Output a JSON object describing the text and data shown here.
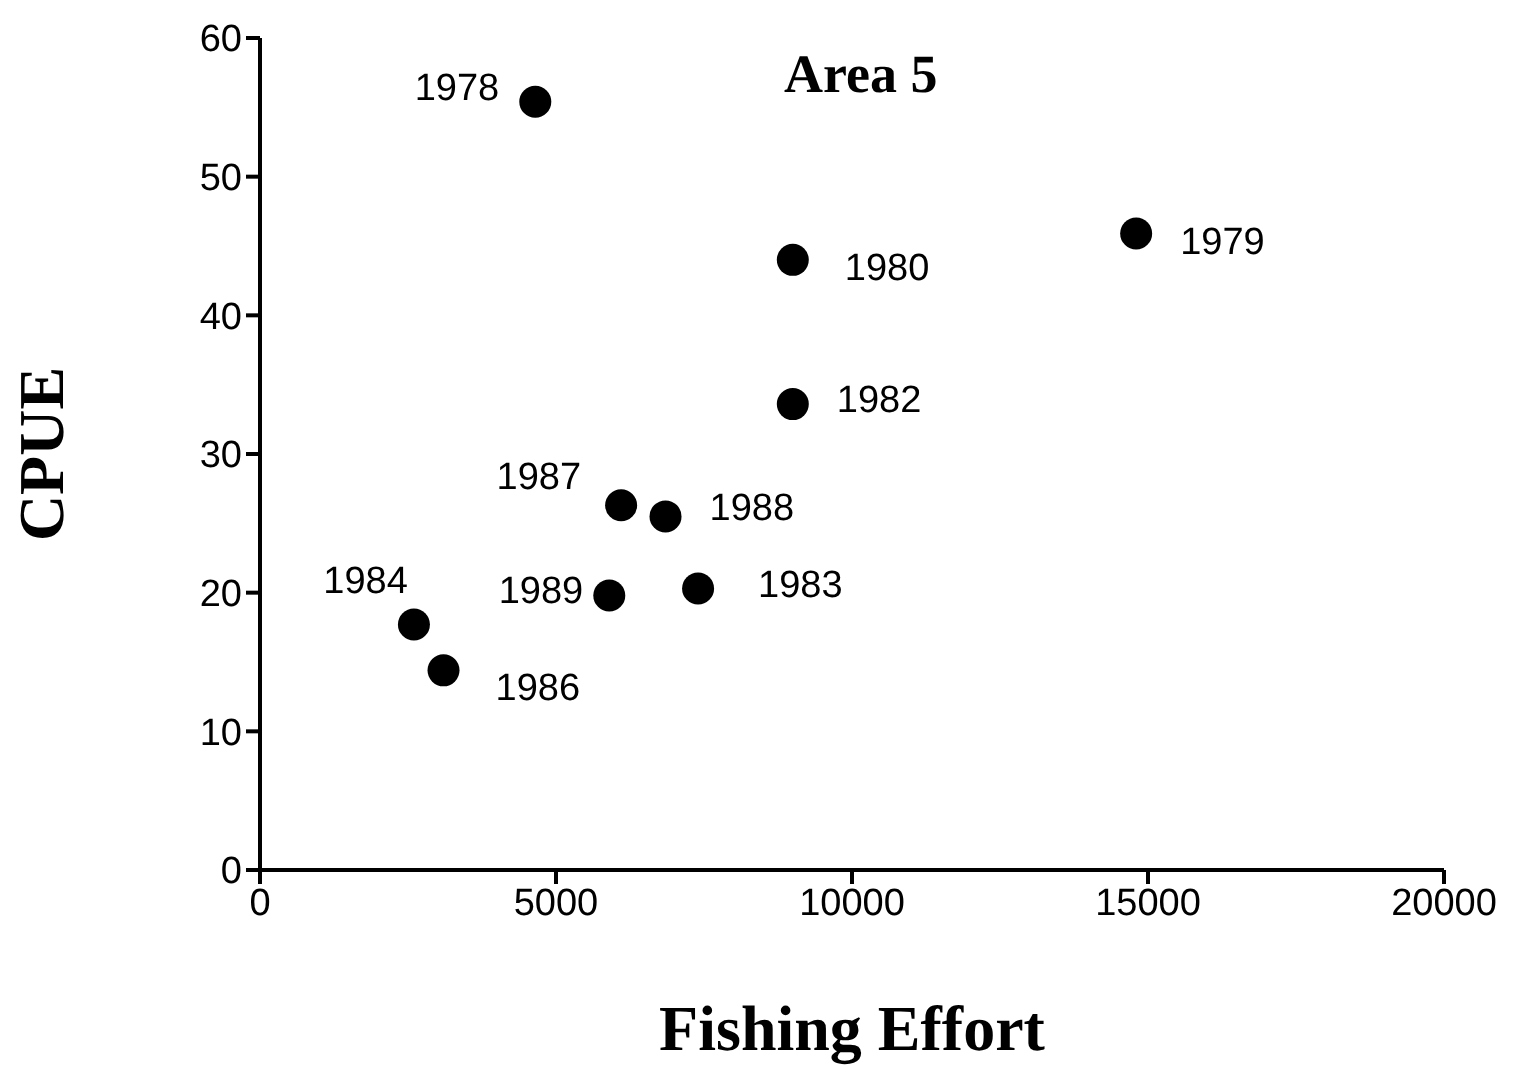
{
  "chart_data": {
    "type": "scatter",
    "title": "Area 5",
    "xlabel": "Fishing  Effort",
    "ylabel": "CPUE",
    "x": [
      4650,
      14800,
      9000,
      9000,
      7400,
      2600,
      3100,
      6100,
      6850,
      5900
    ],
    "values": [
      55.4,
      45.9,
      44.0,
      33.6,
      20.3,
      17.7,
      14.4,
      26.3,
      25.5,
      19.8
    ],
    "annotations": [
      {
        "text": "1978",
        "x": 4650,
        "y": 55.4
      },
      {
        "text": "1979",
        "x": 14800,
        "y": 45.9
      },
      {
        "text": "1980",
        "x": 9000,
        "y": 44.0
      },
      {
        "text": "1982",
        "x": 9000,
        "y": 33.6
      },
      {
        "text": "1983",
        "x": 7400,
        "y": 20.3
      },
      {
        "text": "1984",
        "x": 2600,
        "y": 17.7
      },
      {
        "text": "1986",
        "x": 3100,
        "y": 14.4
      },
      {
        "text": "1987",
        "x": 6100,
        "y": 26.3
      },
      {
        "text": "1988",
        "x": 6850,
        "y": 25.5
      },
      {
        "text": "1989",
        "x": 5900,
        "y": 19.8
      }
    ],
    "color": "#000000",
    "marker": "circle",
    "xlim": [
      0,
      20000
    ],
    "xticks": [
      0,
      5000,
      10000,
      15000,
      20000
    ],
    "ylim": [
      0,
      60
    ],
    "yticks": [
      0,
      10,
      20,
      30,
      40,
      50,
      60
    ],
    "grid": false
  }
}
